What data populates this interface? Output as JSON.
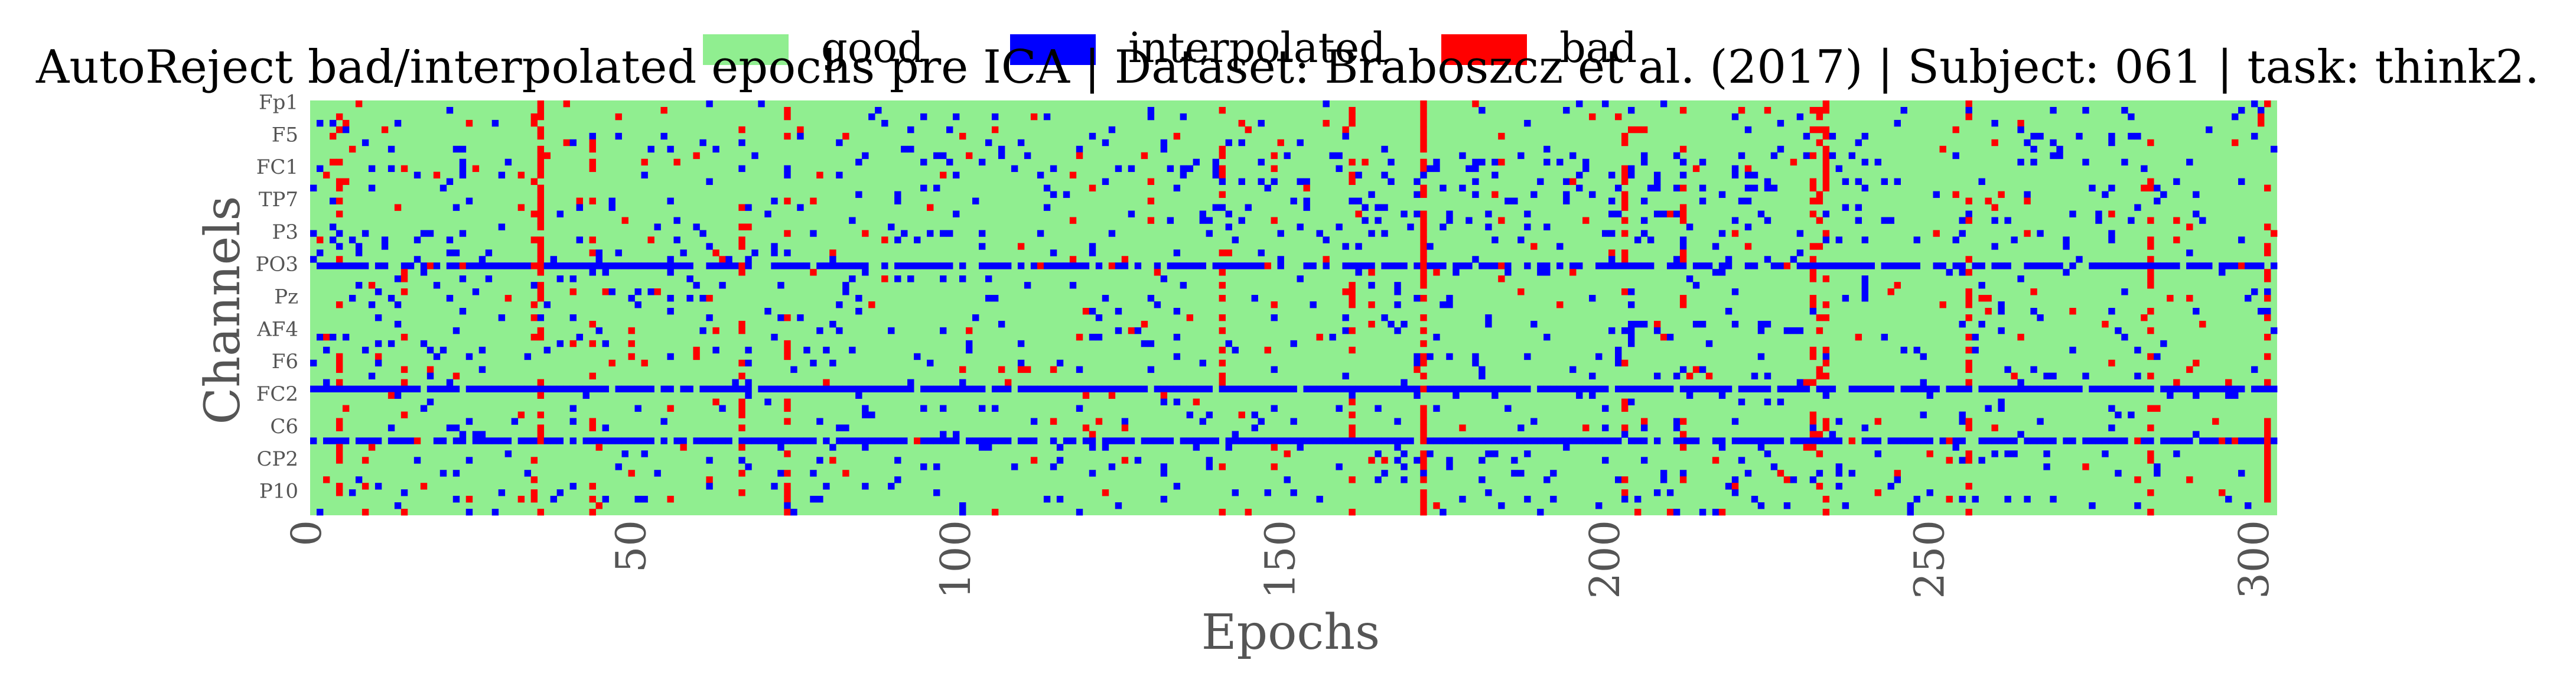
{
  "chart_data": {
    "type": "heatmap",
    "title": "AutoReject bad/interpolated epochs pre ICA | Dataset: Braboszcz et al. (2017) | Subject: 061 | task: think2.",
    "xlabel": "Epochs",
    "ylabel": "Channels",
    "xlim": [
      0,
      303
    ],
    "xticks": [
      "0",
      "50",
      "100",
      "150",
      "200",
      "250",
      "300"
    ],
    "n_epochs": 303,
    "n_channels": 64,
    "yticks": [
      "Fp1",
      "F5",
      "FC1",
      "TP7",
      "P3",
      "PO3",
      "Pz",
      "AF4",
      "F6",
      "FC2",
      "C6",
      "CP2",
      "P10"
    ],
    "legend": [
      {
        "label": "good",
        "color": "#90ee90"
      },
      {
        "label": "interpolated",
        "color": "#0000ff"
      },
      {
        "label": "bad",
        "color": "#ff0000"
      }
    ],
    "legend_position": "top-center",
    "colors": {
      "good": "#90ee90",
      "interpolated": "#0000ff",
      "bad": "#ff0000"
    },
    "bad_epochs": [
      4,
      14,
      34,
      35,
      43,
      66,
      73,
      140,
      160,
      171,
      202,
      211,
      231,
      232,
      233,
      255,
      283,
      301
    ],
    "horizontal_bands": [
      {
        "row": 25,
        "state": "interpolated",
        "density": 0.75
      },
      {
        "row": 44,
        "state": "interpolated",
        "density": 0.9
      },
      {
        "row": 52,
        "state": "interpolated",
        "density": 0.8
      }
    ],
    "bad_streaks": [
      {
        "epoch": 8,
        "rows": [
          55,
          63
        ]
      },
      {
        "epoch": 35,
        "rows": [
          0,
          30
        ]
      },
      {
        "epoch": 171,
        "rows": [
          0,
          63
        ]
      },
      {
        "epoch": 233,
        "rows": [
          0,
          13
        ]
      },
      {
        "epoch": 301,
        "rows": [
          48,
          62
        ]
      }
    ],
    "grid": false
  }
}
